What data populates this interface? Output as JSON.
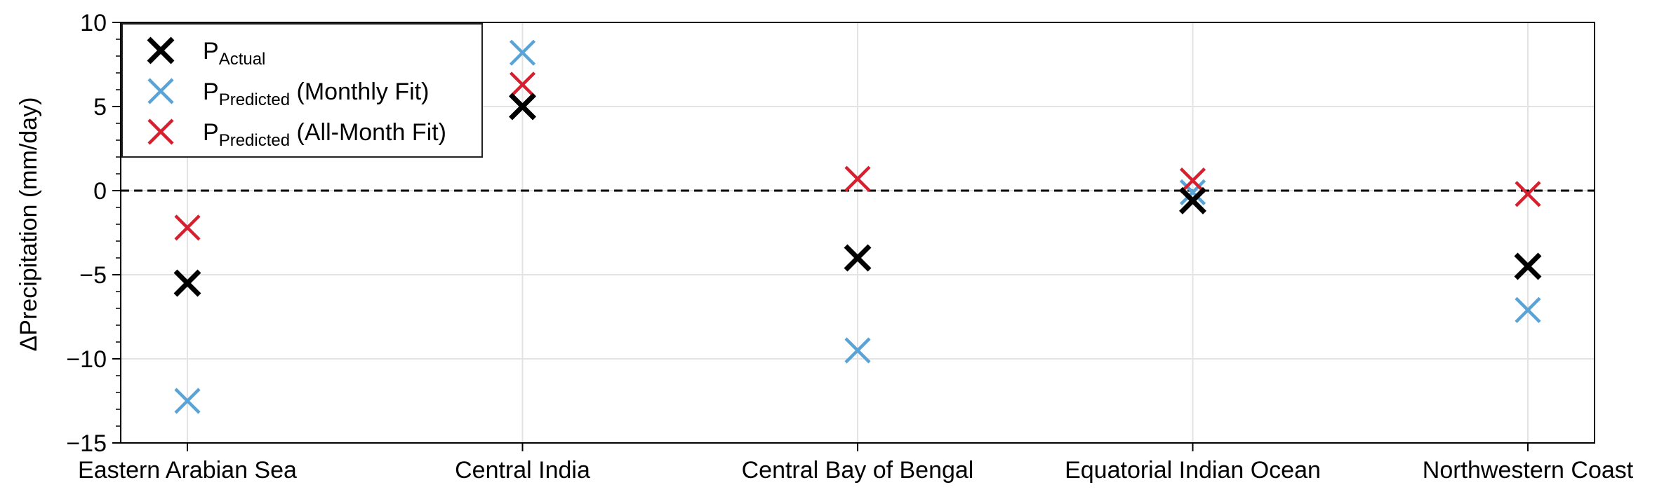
{
  "chart_data": {
    "type": "scatter",
    "title": "",
    "xlabel": "",
    "ylabel": "ΔPrecipitation (mm/day)",
    "ylim": [
      -15,
      10
    ],
    "yticks": [
      -15,
      -10,
      -5,
      0,
      5,
      10
    ],
    "y_tick_labels": [
      "−15",
      "−10",
      "−5",
      "0",
      "5",
      "10"
    ],
    "categories": [
      "Eastern Arabian Sea",
      "Central India",
      "Central Bay of Bengal",
      "Equatorial Indian Ocean",
      "Northwestern Coast"
    ],
    "grid": true,
    "reference_line": {
      "y": 0,
      "style": "dashed",
      "color": "#000000"
    },
    "marker": "x",
    "legend_position": "top-left",
    "series": [
      {
        "name": "P_Actual",
        "legend_main": "P",
        "legend_sub": "Actual",
        "legend_suffix": "",
        "color": "#000000",
        "weight": "bold",
        "values": [
          -5.5,
          5.0,
          -4.0,
          -0.6,
          -4.5
        ]
      },
      {
        "name": "P_Predicted (Monthly Fit)",
        "legend_main": "P",
        "legend_sub": "Predicted",
        "legend_suffix": " (Monthly Fit)",
        "color": "#5aa3d6",
        "weight": "normal",
        "values": [
          -12.5,
          8.2,
          -9.5,
          -0.1,
          -7.1
        ]
      },
      {
        "name": "P_Predicted (All-Month Fit)",
        "legend_main": "P",
        "legend_sub": "Predicted",
        "legend_suffix": " (All-Month Fit)",
        "color": "#d62030",
        "weight": "normal",
        "values": [
          -2.2,
          6.3,
          0.7,
          0.6,
          -0.2
        ]
      }
    ]
  }
}
